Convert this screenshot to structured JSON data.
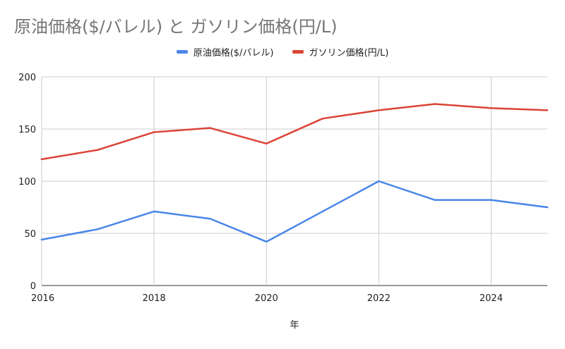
{
  "chart_data": {
    "type": "line",
    "title": "原油価格($/バレル) と ガソリン価格(円/L)",
    "xlabel": "年",
    "ylabel": "",
    "x": [
      2016,
      2017,
      2018,
      2019,
      2020,
      2021,
      2022,
      2023,
      2024,
      2025
    ],
    "xlim": [
      2016,
      2025
    ],
    "ylim": [
      0,
      200
    ],
    "x_ticks": [
      2016,
      2018,
      2020,
      2022,
      2024
    ],
    "y_ticks": [
      0,
      50,
      100,
      150,
      200
    ],
    "grid": true,
    "legend_position": "top",
    "series": [
      {
        "name": "原油価格($/バレル)",
        "color": "#4a86e8",
        "values": [
          44,
          54,
          71,
          64,
          42,
          71,
          100,
          82,
          82,
          75
        ]
      },
      {
        "name": "ガソリン価格(円/L)",
        "color": "#db4437",
        "values": [
          121,
          130,
          147,
          151,
          136,
          160,
          168,
          174,
          170,
          168
        ]
      }
    ]
  }
}
